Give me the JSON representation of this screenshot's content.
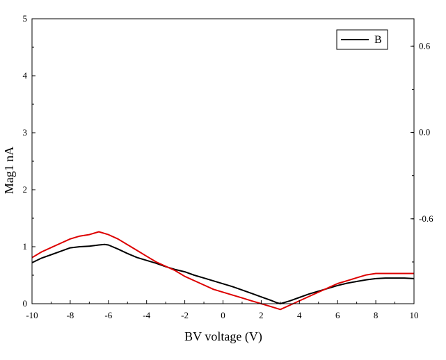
{
  "chart_data": {
    "type": "line",
    "title": "",
    "xlabel": "BV voltage (V)",
    "ylabel": "Mag1 nA",
    "y2label": "",
    "xlim": [
      -10,
      10
    ],
    "ylim": [
      0,
      5
    ],
    "y2lim": [
      -1.19,
      0.79
    ],
    "x_ticks": [
      -10,
      -8,
      -6,
      -4,
      -2,
      0,
      2,
      4,
      6,
      8,
      10
    ],
    "x_tick_labels": [
      "-10",
      "-8",
      "-6",
      "-4",
      "-2",
      "0",
      "2",
      "4",
      "6",
      "8",
      "10"
    ],
    "y_ticks": [
      0,
      1,
      2,
      3,
      4,
      5
    ],
    "y_tick_labels": [
      "0",
      "1",
      "2",
      "3",
      "4",
      "5"
    ],
    "y2_ticks": [
      0.6,
      0.0,
      -0.6
    ],
    "y2_tick_labels": [
      "0.6",
      "0.0",
      "-0.6"
    ],
    "grid": false,
    "legend": {
      "position": "top-right",
      "entries": [
        {
          "label": "B",
          "color": "#000000"
        }
      ]
    },
    "series": [
      {
        "name": "B",
        "color": "#000000",
        "axis": "left",
        "x": [
          -10,
          -9.5,
          -9,
          -8.5,
          -8,
          -7.5,
          -7,
          -6.5,
          -6.2,
          -6,
          -5.5,
          -5,
          -4.5,
          -4,
          -3.5,
          -3,
          -2.5,
          -2,
          -1.5,
          -1,
          -0.5,
          0,
          0.5,
          1,
          1.5,
          2,
          2.5,
          2.8,
          3,
          3.5,
          4,
          4.5,
          5,
          5.5,
          6,
          6.5,
          7,
          7.5,
          8,
          8.5,
          9,
          9.5,
          10
        ],
        "y": [
          0.72,
          0.8,
          0.86,
          0.92,
          0.98,
          1.0,
          1.01,
          1.03,
          1.04,
          1.03,
          0.96,
          0.88,
          0.81,
          0.76,
          0.71,
          0.65,
          0.6,
          0.56,
          0.5,
          0.45,
          0.4,
          0.35,
          0.3,
          0.24,
          0.18,
          0.12,
          0.06,
          0.02,
          0.0,
          0.05,
          0.11,
          0.17,
          0.22,
          0.27,
          0.32,
          0.36,
          0.39,
          0.42,
          0.44,
          0.45,
          0.45,
          0.45,
          0.44
        ]
      },
      {
        "name": "",
        "color": "#dd0000",
        "axis": "right",
        "x": [
          -10,
          -9.5,
          -9,
          -8.5,
          -8,
          -7.5,
          -7,
          -6.5,
          -6,
          -5.5,
          -5,
          -4.5,
          -4,
          -3.5,
          -3,
          -2.5,
          -2,
          -1.5,
          -1,
          -0.5,
          0,
          0.5,
          1,
          1.5,
          2,
          2.5,
          3,
          3.5,
          4,
          4.5,
          5,
          5.5,
          6,
          6.5,
          7,
          7.5,
          8,
          8.5,
          9,
          9.5,
          10
        ],
        "y": [
          -0.87,
          -0.83,
          -0.8,
          -0.77,
          -0.74,
          -0.72,
          -0.71,
          -0.69,
          -0.71,
          -0.74,
          -0.78,
          -0.82,
          -0.86,
          -0.9,
          -0.93,
          -0.96,
          -1.0,
          -1.03,
          -1.06,
          -1.09,
          -1.11,
          -1.13,
          -1.15,
          -1.17,
          -1.19,
          -1.21,
          -1.23,
          -1.2,
          -1.17,
          -1.14,
          -1.11,
          -1.08,
          -1.05,
          -1.03,
          -1.01,
          -0.99,
          -0.98,
          -0.98,
          -0.98,
          -0.98,
          -0.98
        ]
      }
    ]
  }
}
